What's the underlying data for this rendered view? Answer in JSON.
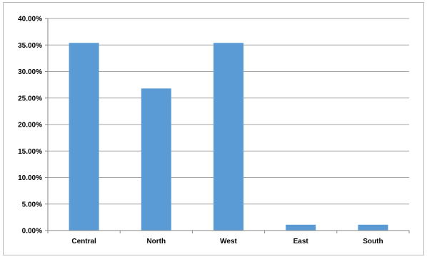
{
  "chart_data": {
    "type": "bar",
    "title": "",
    "xlabel": "",
    "ylabel": "",
    "categories": [
      "Central",
      "North",
      "West",
      "East",
      "South"
    ],
    "values": [
      35.4,
      26.8,
      35.4,
      1.1,
      1.1
    ],
    "ylim": [
      0,
      40
    ],
    "y_ticks": [
      0,
      5,
      10,
      15,
      20,
      25,
      30,
      35,
      40
    ],
    "y_tick_labels": [
      "0.00%",
      "5.00%",
      "10.00%",
      "15.00%",
      "20.00%",
      "25.00%",
      "30.00%",
      "35.00%",
      "40.00%"
    ],
    "grid": true,
    "legend": "none",
    "colors": {
      "bar": "#5b9bd5",
      "grid": "#a6a6a6",
      "axis": "#868686",
      "border": "#b9b9b9"
    }
  }
}
